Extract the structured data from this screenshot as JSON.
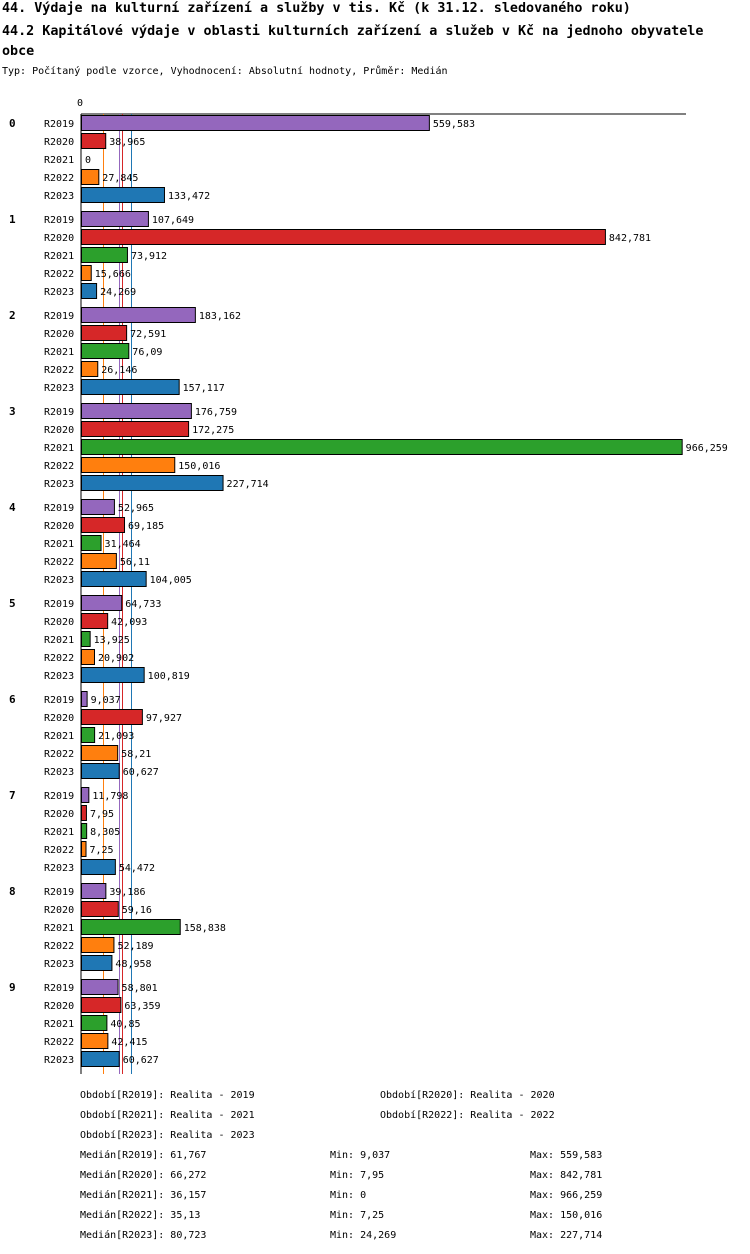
{
  "header": {
    "title": "44. Výdaje na kulturní zařízení a služby v tis. Kč (k 31.12. sledovaného roku)",
    "subtitle": "44.2 Kapitálové výdaje v oblasti kulturních zařízení a služeb v Kč na jednoho obyvatele obce",
    "info": "Typ: Počítaný podle vzorce, Vyhodnocení: Absolutní hodnoty, Průměr: Medián"
  },
  "chart_data": {
    "type": "bar",
    "orientation": "horizontal",
    "x_tick_label": "0",
    "categories": [
      "0",
      "1",
      "2",
      "3",
      "4",
      "5",
      "6",
      "7",
      "8",
      "9"
    ],
    "series": [
      {
        "name": "R2019",
        "color": "#9467bd",
        "values": [
          559.583,
          107.649,
          183.162,
          176.759,
          52.965,
          64.733,
          9.037,
          11.798,
          39.186,
          58.801
        ],
        "labels": [
          "559,583",
          "107,649",
          "183,162",
          "176,759",
          "52,965",
          "64,733",
          "9,037",
          "11,798",
          "39,186",
          "58,801"
        ]
      },
      {
        "name": "R2020",
        "color": "#d62728",
        "values": [
          38.965,
          842.781,
          72.591,
          172.275,
          69.185,
          42.093,
          97.927,
          7.95,
          59.16,
          63.359
        ],
        "labels": [
          "38,965",
          "842,781",
          "72,591",
          "172,275",
          "69,185",
          "42,093",
          "97,927",
          "7,95",
          "59,16",
          "63,359"
        ]
      },
      {
        "name": "R2021",
        "color": "#2ca02c",
        "values": [
          0,
          73.912,
          76.09,
          966.259,
          31.464,
          13.925,
          21.093,
          8.305,
          158.838,
          40.85
        ],
        "labels": [
          "0",
          "73,912",
          "76,09",
          "966,259",
          "31,464",
          "13,925",
          "21,093",
          "8,305",
          "158,838",
          "40,85"
        ]
      },
      {
        "name": "R2022",
        "color": "#ff7f0e",
        "values": [
          27.845,
          15.666,
          26.146,
          150.016,
          56.11,
          20.902,
          58.21,
          7.25,
          52.189,
          42.415
        ],
        "labels": [
          "27,845",
          "15,666",
          "26,146",
          "150,016",
          "56,11",
          "20,902",
          "58,21",
          "7,25",
          "52,189",
          "42,415"
        ]
      },
      {
        "name": "R2023",
        "color": "#1f77b4",
        "values": [
          133.472,
          24.269,
          157.117,
          227.714,
          104.005,
          100.819,
          60.627,
          54.472,
          48.958,
          60.627
        ],
        "labels": [
          "133,472",
          "24,269",
          "157,117",
          "227,714",
          "104,005",
          "100,819",
          "60,627",
          "54,472",
          "48,958",
          "60,627"
        ]
      }
    ],
    "medians": [
      61.767,
      66.272,
      36.157,
      35.13,
      80.723
    ],
    "xlim": [
      0,
      966.259
    ]
  },
  "legend": {
    "periods": [
      "Období[R2019]: Realita - 2019",
      "Období[R2020]: Realita - 2020",
      "Období[R2021]: Realita - 2021",
      "Období[R2022]: Realita - 2022",
      "Období[R2023]: Realita - 2023"
    ],
    "stats": [
      {
        "median": "Medián[R2019]: 61,767",
        "min": "Min: 9,037",
        "max": "Max: 559,583"
      },
      {
        "median": "Medián[R2020]: 66,272",
        "min": "Min: 7,95",
        "max": "Max: 842,781"
      },
      {
        "median": "Medián[R2021]: 36,157",
        "min": "Min: 0",
        "max": "Max: 966,259"
      },
      {
        "median": "Medián[R2022]: 35,13",
        "min": "Min: 7,25",
        "max": "Max: 150,016"
      },
      {
        "median": "Medián[R2023]: 80,723",
        "min": "Min: 24,269",
        "max": "Max: 227,714"
      }
    ]
  }
}
